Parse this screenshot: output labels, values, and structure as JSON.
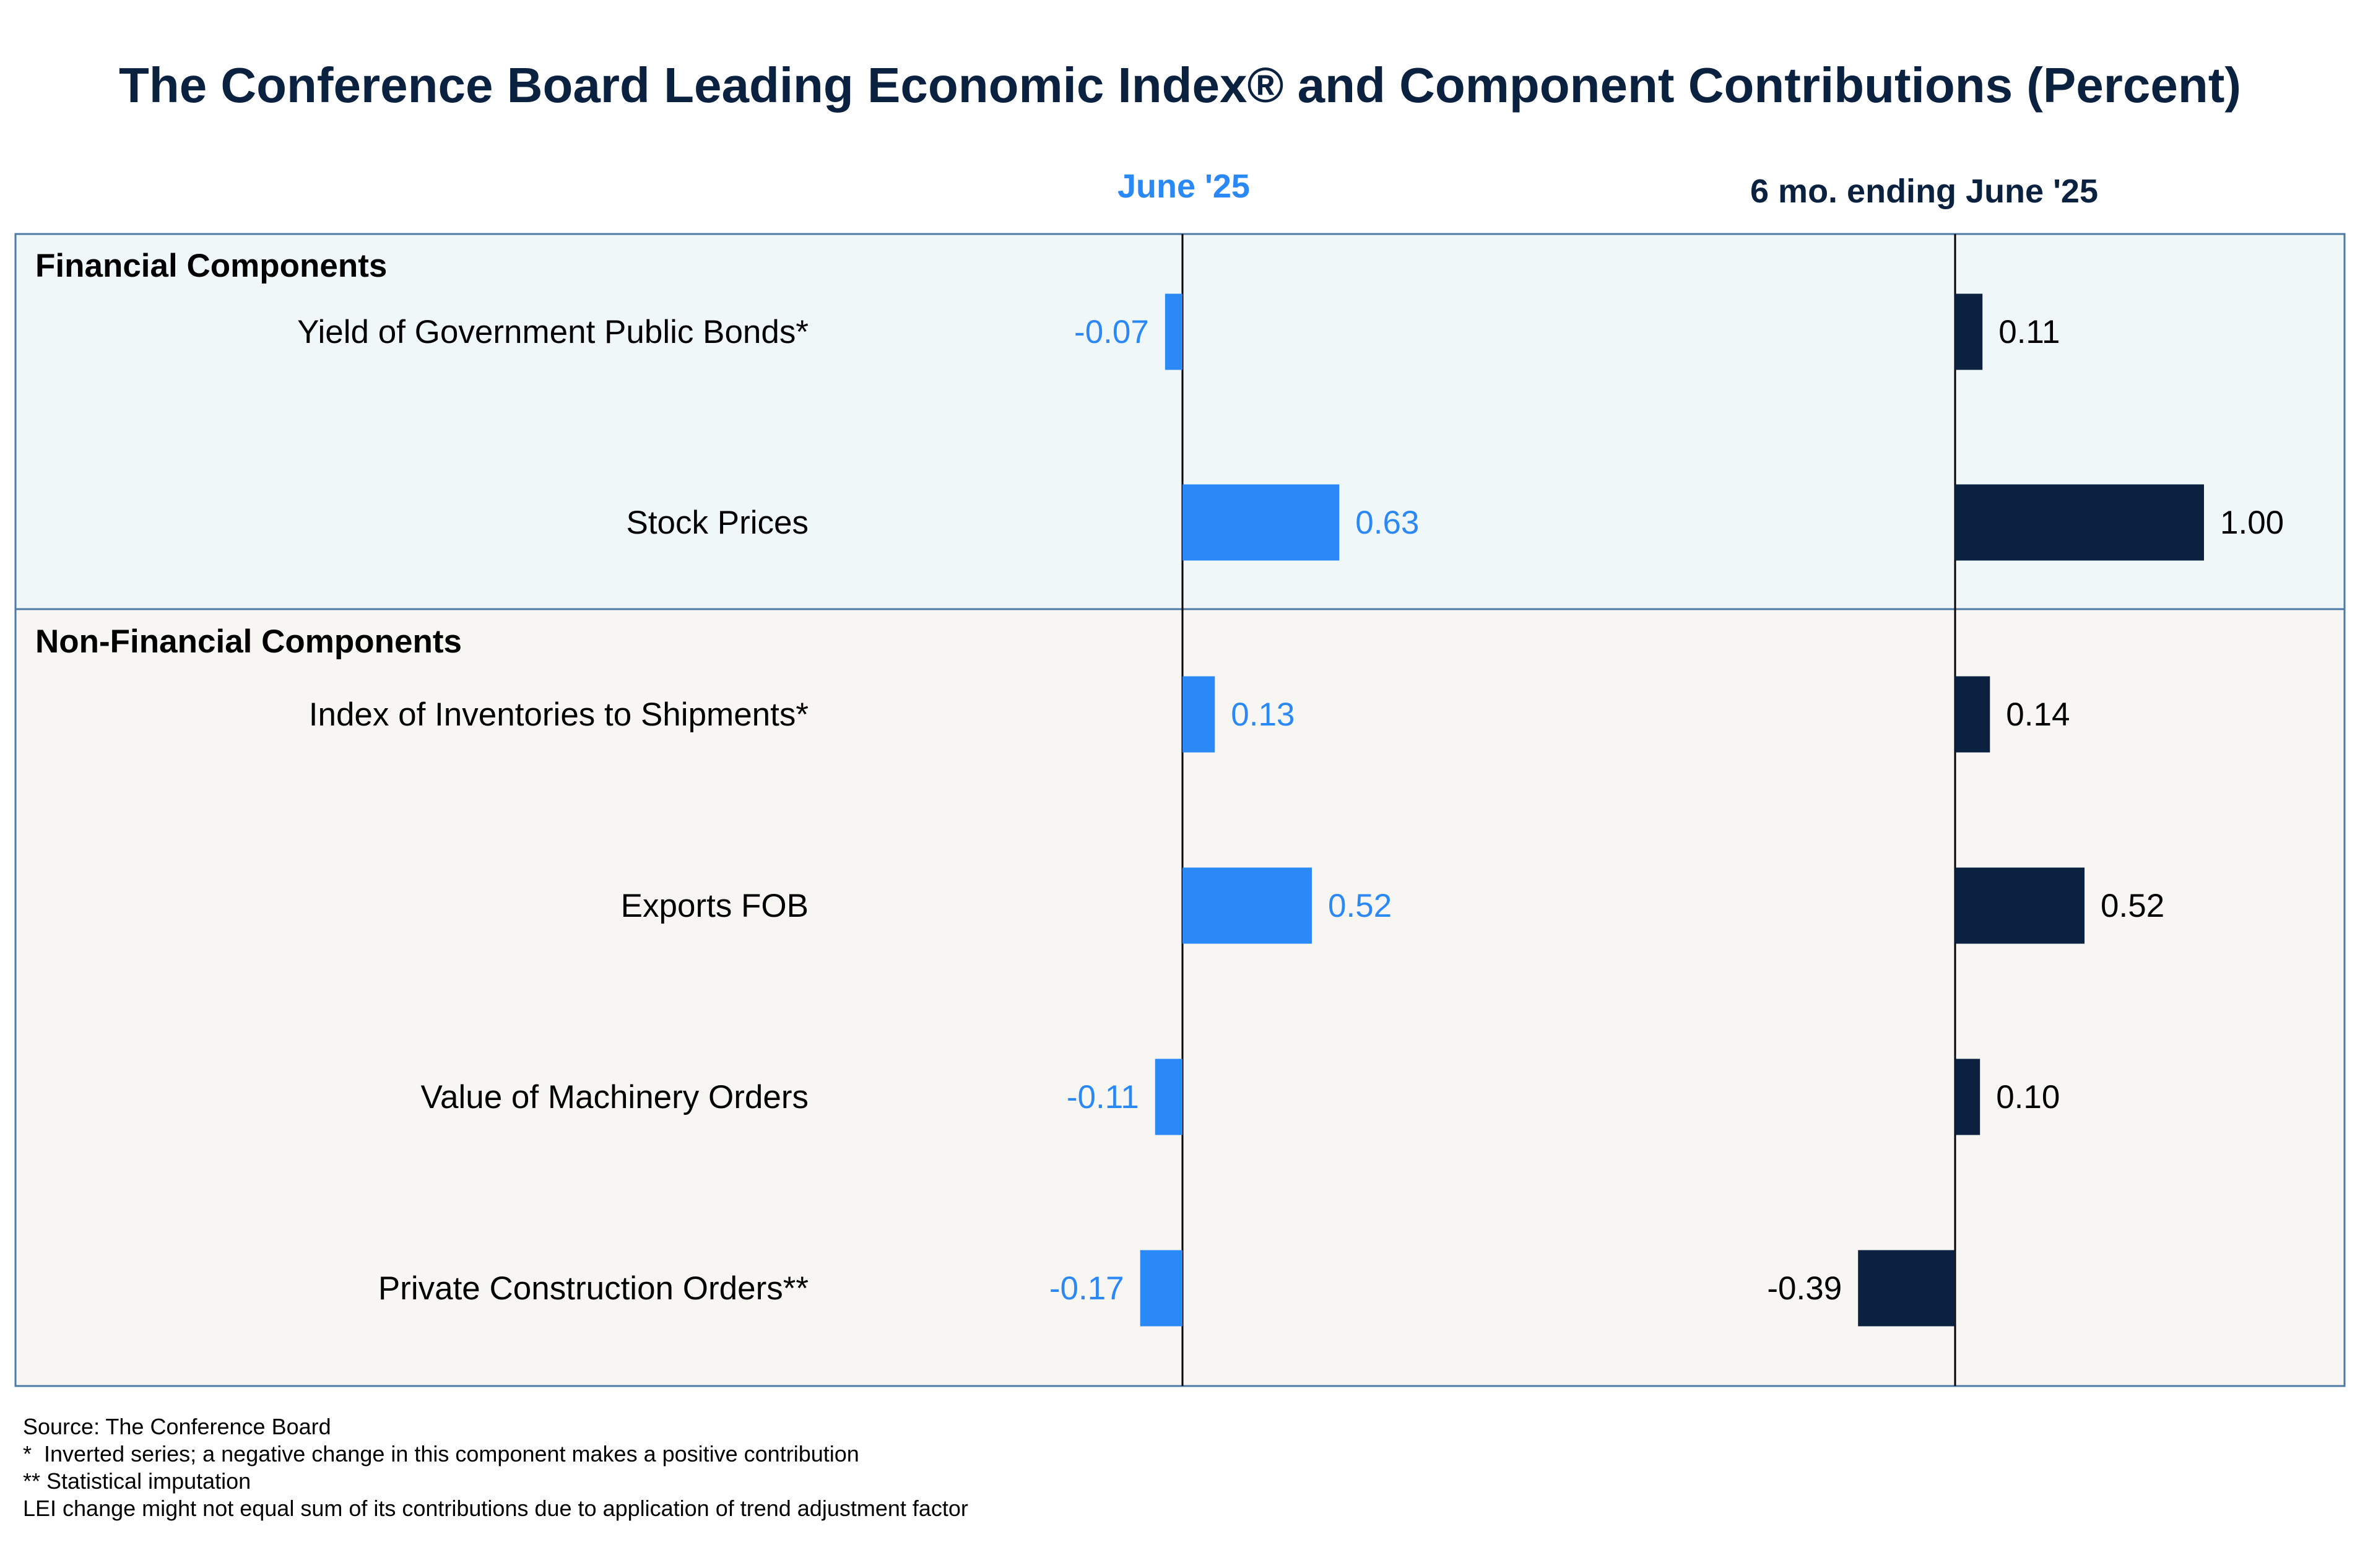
{
  "colors": {
    "june": "#2b88f7",
    "six_month": "#0b2140",
    "financial_bg": "#eff7f8",
    "nonfinancial_bg": "#f7f6f3",
    "panel_border": "#4d7ba6",
    "title": "#0b2140"
  },
  "chart_data": {
    "type": "bar",
    "orientation": "horizontal",
    "title": "The Conference Board Leading Economic Index® and Component Contributions (Percent)",
    "columns": [
      "June '25",
      "6 mo. ending June '25"
    ],
    "groups": [
      {
        "name": "Financial Components",
        "rows": [
          {
            "label": "Yield of Government Public Bonds*",
            "june": -0.07,
            "june_label": "-0.07",
            "six_month": 0.11,
            "six_month_label": "0.11"
          },
          {
            "label": "Stock Prices",
            "june": 0.63,
            "june_label": "0.63",
            "six_month": 1.0,
            "six_month_label": "1.00"
          }
        ]
      },
      {
        "name": "Non-Financial Components",
        "rows": [
          {
            "label": "Index of Inventories to Shipments*",
            "june": 0.13,
            "june_label": "0.13",
            "six_month": 0.14,
            "six_month_label": "0.14"
          },
          {
            "label": "Exports FOB",
            "june": 0.52,
            "june_label": "0.52",
            "six_month": 0.52,
            "six_month_label": "0.52"
          },
          {
            "label": "Value of Machinery Orders",
            "june": -0.11,
            "june_label": "-0.11",
            "six_month": 0.1,
            "six_month_label": "0.10"
          },
          {
            "label": "Private Construction Orders**",
            "june": -0.17,
            "june_label": "-0.17",
            "six_month": -0.39,
            "six_month_label": "-0.39"
          }
        ]
      }
    ]
  },
  "footnotes": {
    "source": "Source: The Conference Board",
    "note1": "*  Inverted series; a negative change in this component makes a positive contribution",
    "note2": "** Statistical imputation",
    "note3": "LEI change might not equal sum of its contributions due to application of trend adjustment factor"
  }
}
